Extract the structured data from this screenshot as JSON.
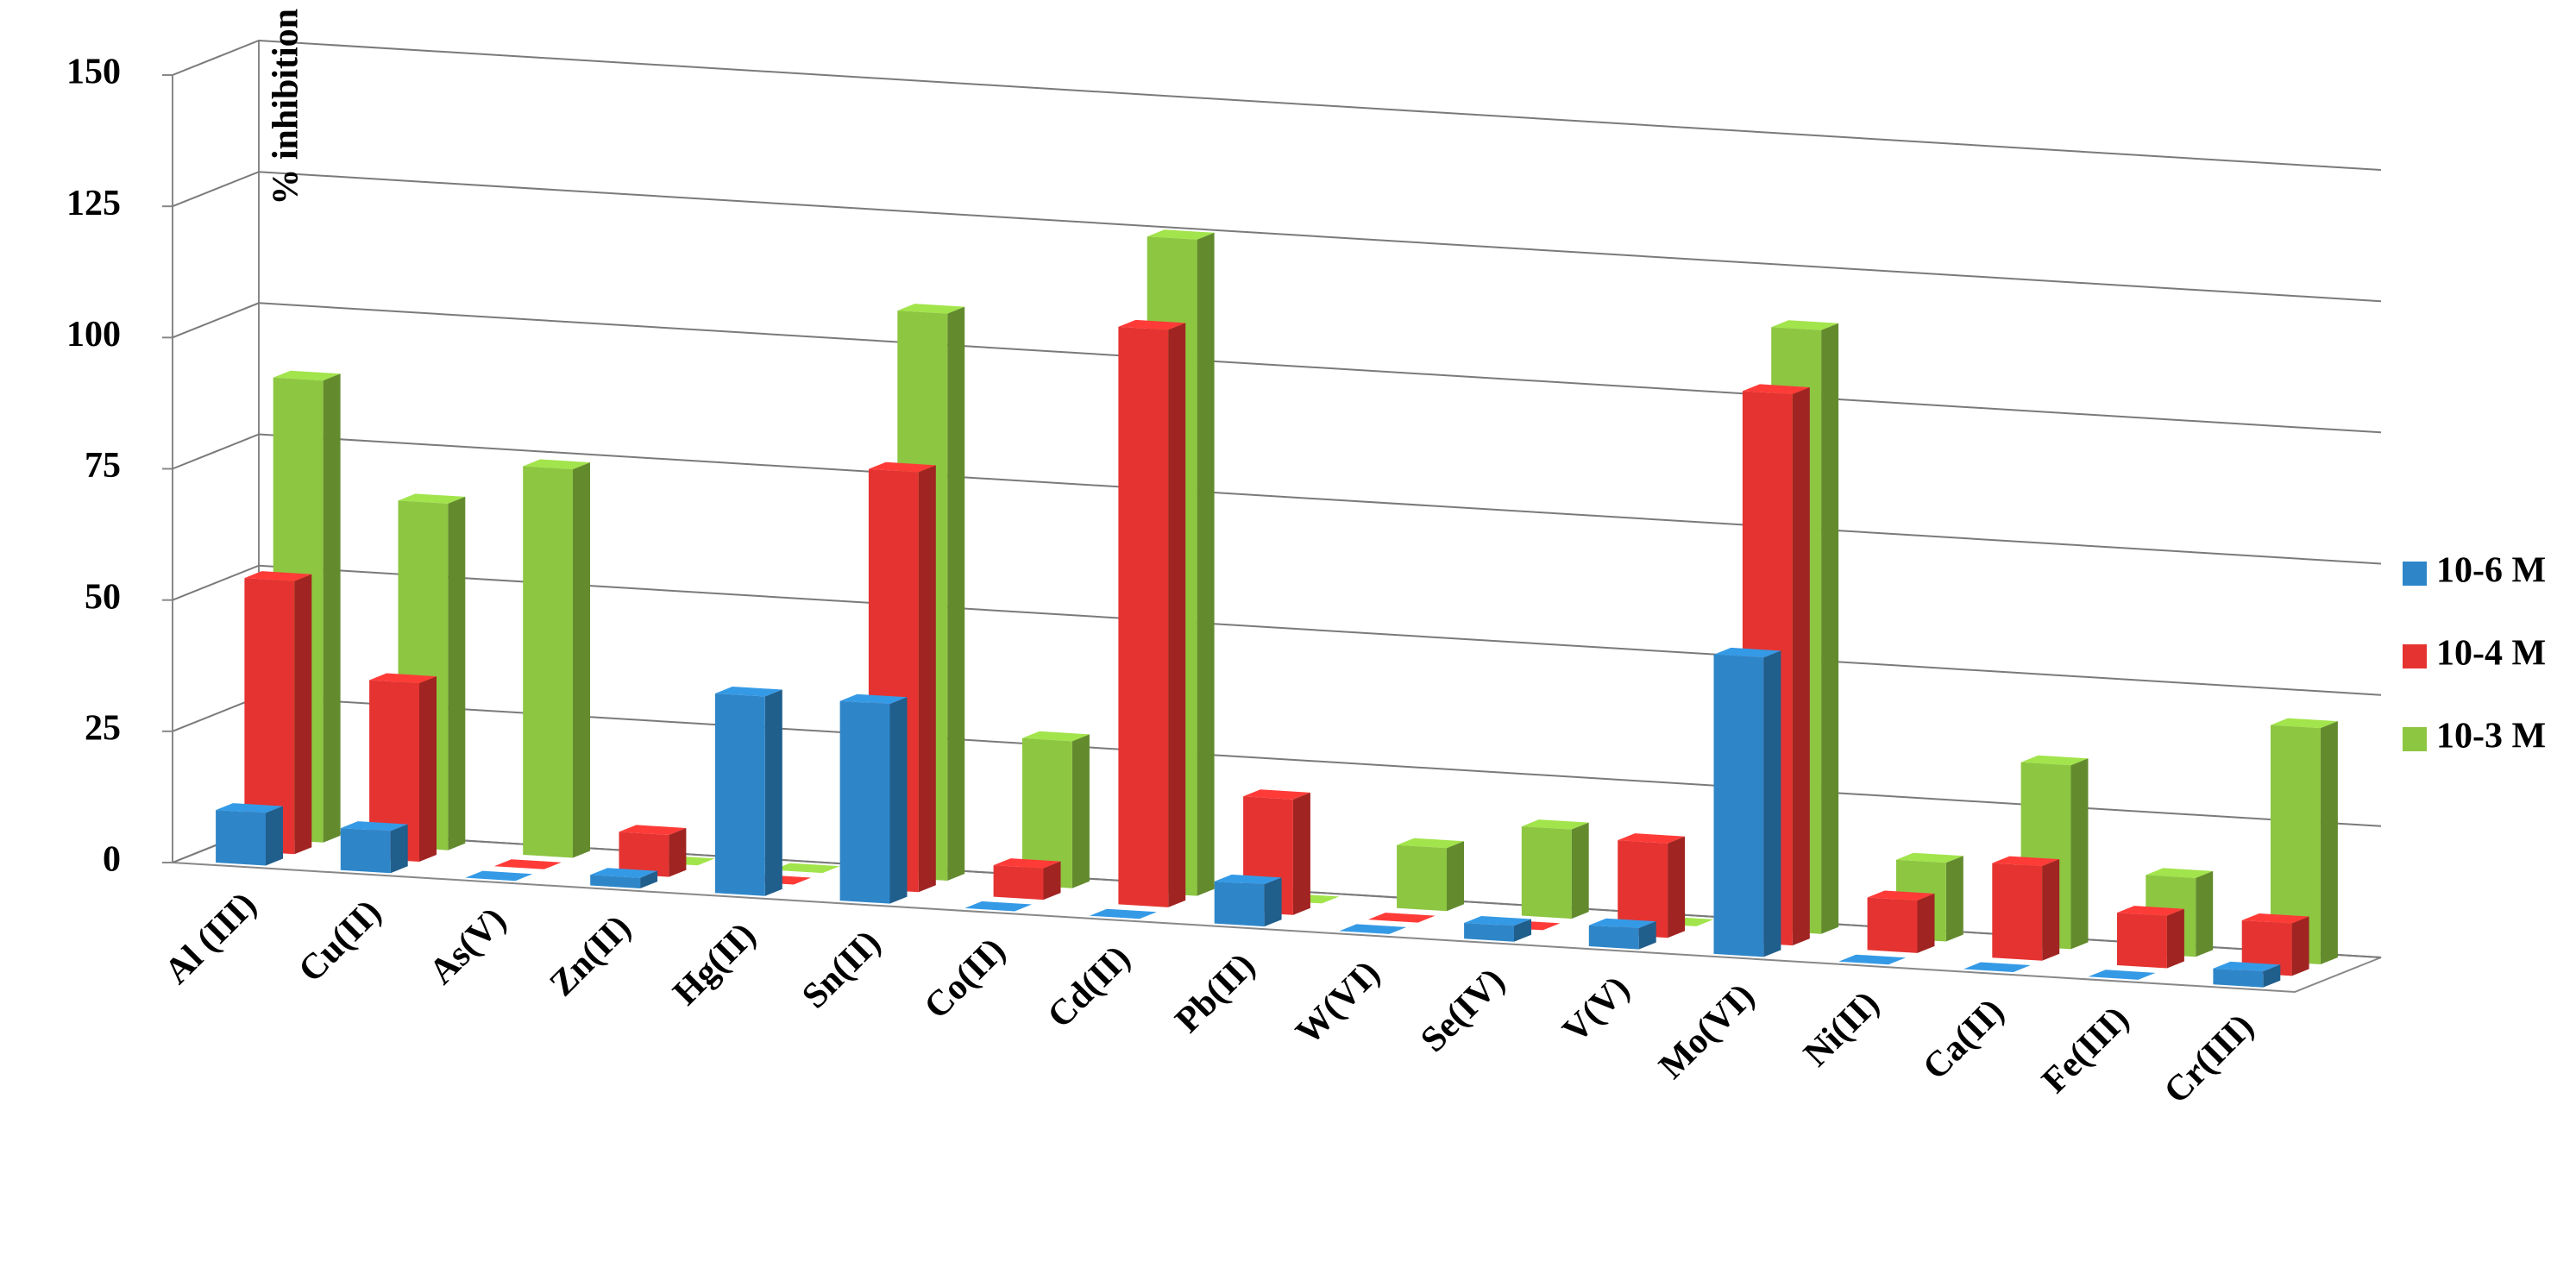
{
  "chart_data": {
    "type": "bar3d",
    "y_axis_label": "% inhibition",
    "categories": [
      "Al (III)",
      "Cu(II)",
      "As(V)",
      "Zn(II)",
      "Hg(II)",
      "Sn(II)",
      "Co(II)",
      "Cd(II)",
      "Pb(II)",
      "W(VI)",
      "Se(IV)",
      "V(V)",
      "Mo(VI)",
      "Ni(II)",
      "Ca(II)",
      "Fe(III)",
      "Cr(III)"
    ],
    "series": [
      {
        "name": "10-6 M",
        "color": "#2e86c8",
        "values": [
          10,
          8,
          0,
          2,
          38,
          38,
          0,
          0,
          8,
          0,
          3,
          4,
          57,
          0,
          0,
          0,
          3
        ]
      },
      {
        "name": "10-4 M",
        "color": "#e53331",
        "values": [
          52,
          34,
          0,
          8,
          0,
          80,
          6,
          110,
          22,
          0,
          0,
          18,
          105,
          10,
          18,
          10,
          10
        ]
      },
      {
        "name": "10-3 M",
        "color": "#8dc641",
        "values": [
          88,
          66,
          74,
          0,
          0,
          108,
          28,
          125,
          0,
          12,
          17,
          0,
          115,
          15,
          35,
          15,
          45
        ]
      }
    ],
    "ylim": [
      0,
      150
    ],
    "yticks": [
      0,
      25,
      50,
      75,
      100,
      125,
      150
    ],
    "grid": true,
    "legend": "right"
  }
}
